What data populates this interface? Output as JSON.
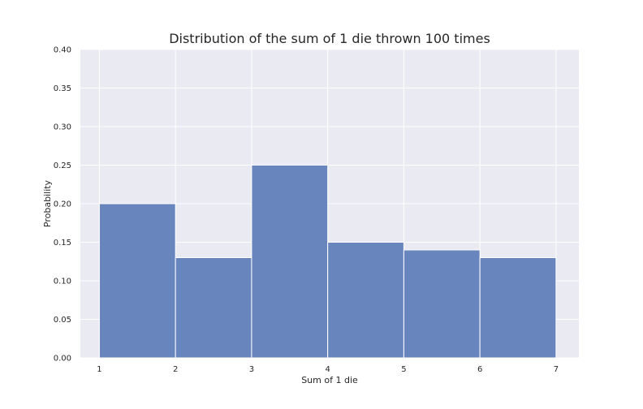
{
  "chart_data": {
    "type": "bar",
    "title": "Distribution of the sum of 1 die thrown 100 times",
    "xlabel": "Sum of 1 die",
    "ylabel": "Probability",
    "bin_edges": [
      1,
      2,
      3,
      4,
      5,
      6,
      7
    ],
    "values": [
      0.2,
      0.13,
      0.25,
      0.15,
      0.14,
      0.13
    ],
    "xlim": [
      0.75,
      7.3
    ],
    "ylim": [
      0,
      0.4
    ],
    "xticks": [
      "1",
      "2",
      "3",
      "4",
      "5",
      "6",
      "7"
    ],
    "yticks": [
      "0.00",
      "0.05",
      "0.10",
      "0.15",
      "0.20",
      "0.25",
      "0.30",
      "0.35",
      "0.40"
    ],
    "grid": true,
    "colors": {
      "bar": "#6886bd",
      "plot_background": "#eaeaf2",
      "grid": "#ffffff"
    }
  }
}
